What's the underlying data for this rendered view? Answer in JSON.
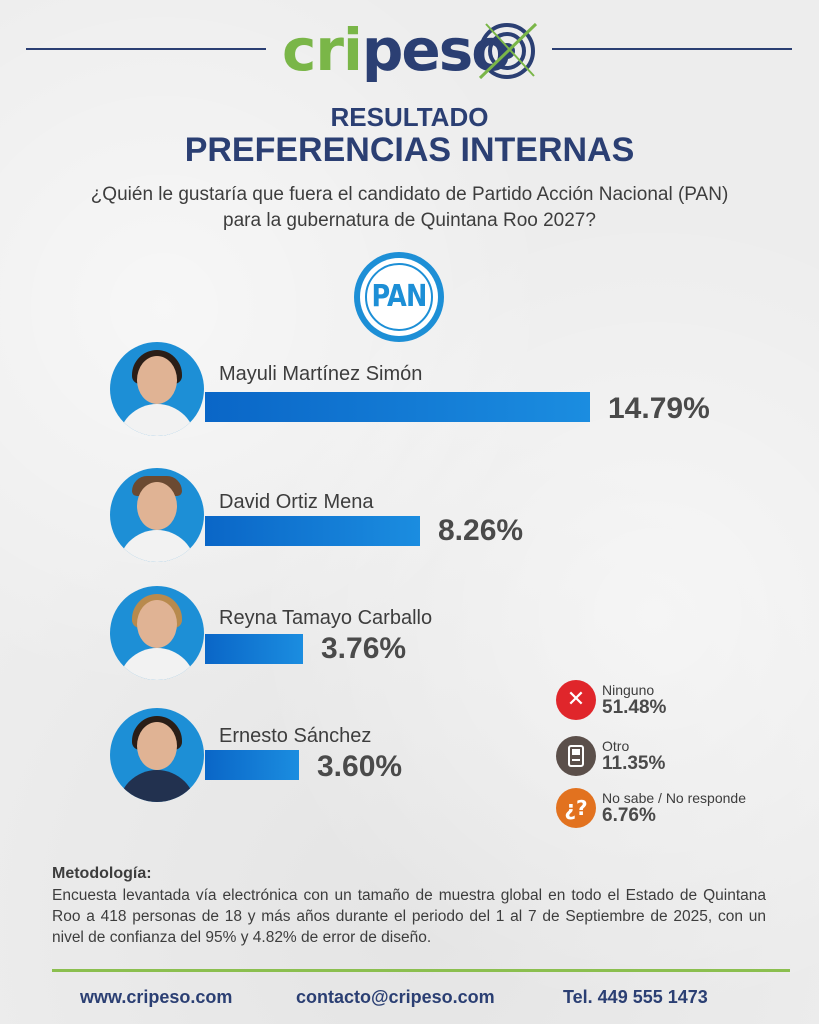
{
  "brand": {
    "logo_text_green": "cri",
    "logo_text_blue": "peso"
  },
  "header": {
    "title1": "RESULTADO",
    "title2": "PREFERENCIAS INTERNAS",
    "question_line1": "¿Quién le gustaría que fuera el candidato de Partido Acción Nacional (PAN)",
    "question_line2": "para la gubernatura de Quintana Roo 2027?"
  },
  "party_logo": {
    "text": "PAN",
    "color": "#1d8fd6"
  },
  "chart_data": {
    "type": "bar",
    "orientation": "horizontal",
    "categories": [
      "Mayuli Martínez Simón",
      "David Ortiz Mena",
      "Reyna Tamayo Carballo",
      "Ernesto Sánchez"
    ],
    "values": [
      14.79,
      8.26,
      3.76,
      3.6
    ],
    "labels": [
      "14.79%",
      "8.26%",
      "3.76%",
      "3.60%"
    ],
    "bar_color": "#1b8de0",
    "other_responses": [
      {
        "label": "Ninguno",
        "value": 51.48,
        "display": "51.48%",
        "icon": "x-icon",
        "color": "#e0262b"
      },
      {
        "label": "Otro",
        "value": 11.35,
        "display": "11.35%",
        "icon": "ballot-box-icon",
        "color": "#5b4f4a"
      },
      {
        "label": "No sabe / No responde",
        "value": 6.76,
        "display": "6.76%",
        "icon": "question-icon",
        "color": "#e2721f"
      }
    ]
  },
  "methodology": {
    "title": "Metodología:",
    "body": "Encuesta levantada vía electrónica con un tamaño de muestra global en todo el Estado de Quintana Roo a 418 personas de 18 y más años durante el periodo del 1 al 7 de Septiembre de 2025, con un nivel de confianza del 95% y 4.82% de error de diseño."
  },
  "footer": {
    "website": "www.cripeso.com",
    "email": "contacto@cripeso.com",
    "phone": "Tel. 449 555 1473"
  },
  "colors": {
    "navy": "#2b3f73",
    "green": "#7ab648",
    "blue": "#1d8fd6"
  }
}
